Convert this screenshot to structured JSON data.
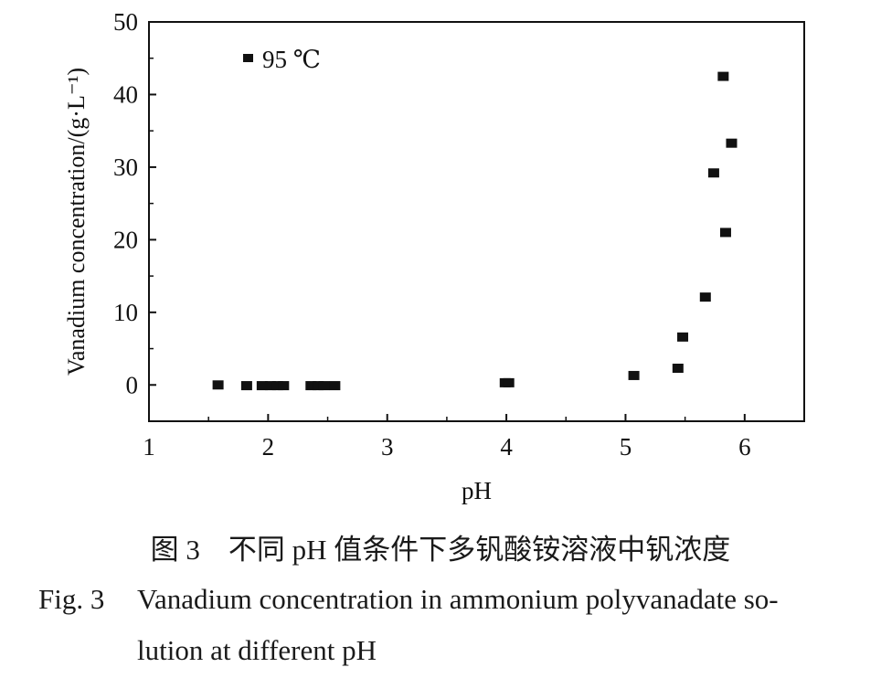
{
  "chart_data": {
    "type": "scatter",
    "title": "",
    "xlabel": "pH",
    "ylabel": "Vanadium concentration/(g·L⁻¹)",
    "xlim": [
      1,
      6.5
    ],
    "ylim": [
      -5,
      50
    ],
    "xticks": [
      1,
      2,
      3,
      4,
      5,
      6
    ],
    "yticks": [
      0,
      10,
      20,
      30,
      40,
      50
    ],
    "legend": {
      "position": "top-left",
      "label": "95 ℃"
    },
    "grid": false,
    "series": [
      {
        "name": "95 ℃",
        "marker": "square",
        "color": "#111111",
        "points": [
          {
            "x": 1.58,
            "y": 0.0
          },
          {
            "x": 1.82,
            "y": -0.1
          },
          {
            "x": 1.95,
            "y": -0.1
          },
          {
            "x": 2.02,
            "y": -0.1
          },
          {
            "x": 2.08,
            "y": -0.1
          },
          {
            "x": 2.13,
            "y": -0.1
          },
          {
            "x": 2.36,
            "y": -0.1
          },
          {
            "x": 2.42,
            "y": -0.1
          },
          {
            "x": 2.47,
            "y": -0.1
          },
          {
            "x": 2.56,
            "y": -0.1
          },
          {
            "x": 3.99,
            "y": 0.3
          },
          {
            "x": 4.02,
            "y": 0.3
          },
          {
            "x": 5.07,
            "y": 1.3
          },
          {
            "x": 5.44,
            "y": 2.3
          },
          {
            "x": 5.48,
            "y": 6.6
          },
          {
            "x": 5.67,
            "y": 12.1
          },
          {
            "x": 5.74,
            "y": 29.2
          },
          {
            "x": 5.82,
            "y": 42.5
          },
          {
            "x": 5.84,
            "y": 21.0
          },
          {
            "x": 5.89,
            "y": 33.3
          }
        ]
      }
    ]
  },
  "captions": {
    "cn": "图 3　不同 pH 值条件下多钒酸铵溶液中钒浓度",
    "en_label": "Fig. 3",
    "en_line1": "Vanadium concentration in ammonium polyvanadate so-",
    "en_line2": "lution at different pH"
  }
}
